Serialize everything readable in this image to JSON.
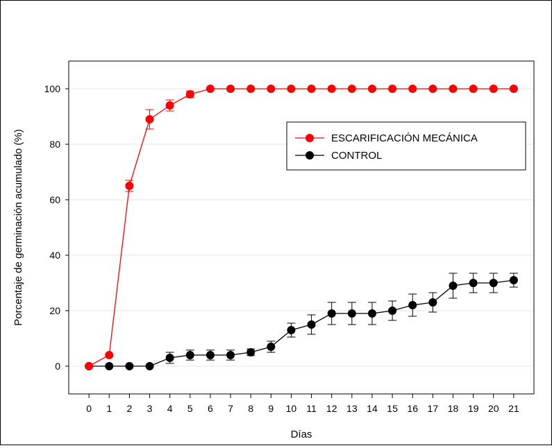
{
  "chart_data": {
    "type": "line",
    "title": "",
    "xlabel": "Días",
    "ylabel": "Porcentaje de germinación acumulado (%)",
    "xlim": [
      -1,
      22
    ],
    "ylim": [
      -10,
      110
    ],
    "x": [
      0,
      1,
      2,
      3,
      4,
      5,
      6,
      7,
      8,
      9,
      10,
      11,
      12,
      13,
      14,
      15,
      16,
      17,
      18,
      19,
      20,
      21
    ],
    "x_tick_labels": [
      "0",
      "1",
      "2",
      "3",
      "4",
      "5",
      "6",
      "7",
      "8",
      "9",
      "10",
      "11",
      "12",
      "13",
      "14",
      "15",
      "16",
      "17",
      "18",
      "19",
      "20",
      "21"
    ],
    "y_ticks": [
      0,
      20,
      40,
      60,
      80,
      100
    ],
    "y_tick_labels": [
      "0",
      "20",
      "40",
      "60",
      "80",
      "100"
    ],
    "grid": "horizontal",
    "legend_position": "upper-right",
    "series": [
      {
        "name": "ESCARIFICACIÓN MECÁNICA",
        "color": "#ff0000",
        "values": [
          0,
          4,
          65,
          89,
          94,
          98,
          100,
          100,
          100,
          100,
          100,
          100,
          100,
          100,
          100,
          100,
          100,
          100,
          100,
          100,
          100,
          100
        ],
        "errors": [
          0,
          0,
          2,
          3.5,
          2,
          1.2,
          0,
          0,
          0,
          0,
          0,
          0,
          0,
          0,
          0,
          0,
          0,
          0,
          0,
          0,
          0,
          0
        ]
      },
      {
        "name": "CONTROL",
        "color": "#000000",
        "values": [
          0,
          0,
          0,
          0,
          3,
          4,
          4,
          4,
          5,
          7,
          13,
          15,
          19,
          19,
          19,
          20,
          22,
          23,
          29,
          30,
          30,
          31
        ],
        "errors": [
          0,
          0,
          0,
          0,
          2,
          1.8,
          1.8,
          1.8,
          1.2,
          2,
          2.5,
          3.5,
          4,
          4,
          4,
          3.5,
          4,
          3.5,
          4.5,
          3.5,
          3.5,
          2.5
        ]
      }
    ]
  }
}
